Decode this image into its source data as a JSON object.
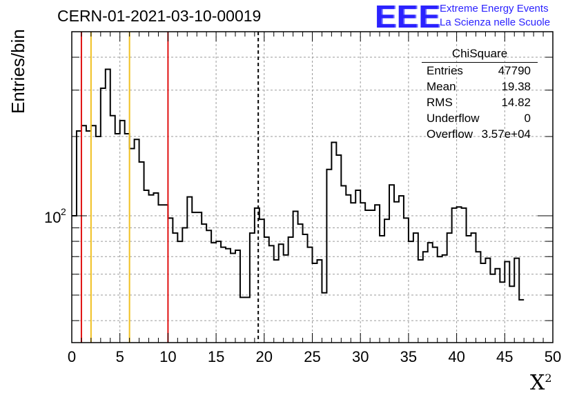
{
  "title": "CERN-01-2021-03-10-00019",
  "logo": {
    "mark": "EEE",
    "line1": "Extreme Energy Events",
    "line2": "La Scienza nelle Scuole",
    "color": "#2b22ff"
  },
  "chart_data": {
    "type": "histogram",
    "xlabel": "X",
    "xlabel_superscript": "2",
    "ylabel": "Entries/bin",
    "xlim": [
      0,
      50
    ],
    "ylim": [
      33,
      500
    ],
    "log_y": true,
    "grid": true,
    "x_ticks": [
      0,
      5,
      10,
      15,
      20,
      25,
      30,
      35,
      40,
      45,
      50
    ],
    "y_tick_labels": [
      {
        "value": 100,
        "label": "10",
        "superscript": "2"
      }
    ],
    "bin_width": 0.5,
    "bin_values": [
      100,
      210,
      220,
      210,
      220,
      200,
      305,
      360,
      240,
      205,
      230,
      205,
      180,
      195,
      160,
      125,
      120,
      122,
      110,
      110,
      98,
      86,
      80,
      90,
      118,
      103,
      103,
      93,
      88,
      79,
      80,
      76,
      75,
      72,
      74,
      49,
      49,
      86,
      107,
      97,
      83,
      77,
      68,
      78,
      71,
      83,
      104,
      93,
      85,
      76,
      66,
      68,
      51,
      150,
      190,
      170,
      130,
      120,
      112,
      125,
      112,
      105,
      105,
      110,
      84,
      97,
      131,
      113,
      119,
      98,
      80,
      86,
      68,
      73,
      79,
      76,
      70,
      71,
      86,
      107,
      108,
      107,
      84,
      86,
      73,
      66,
      69,
      60,
      63,
      56,
      67,
      54,
      69,
      48
    ],
    "vertical_lines": [
      {
        "x": 1,
        "color": "#e01010",
        "style": "solid"
      },
      {
        "x": 2,
        "color": "#f0c020",
        "style": "solid"
      },
      {
        "x": 6,
        "color": "#f0c020",
        "style": "solid"
      },
      {
        "x": 10,
        "color": "#e01010",
        "style": "solid"
      },
      {
        "x": 19.38,
        "color": "#000000",
        "style": "dashed"
      }
    ],
    "stats": {
      "title": "ChiSquare",
      "rows": [
        {
          "name": "Entries",
          "value": "47790"
        },
        {
          "name": "Mean",
          "value": "19.38"
        },
        {
          "name": "RMS",
          "value": "14.82"
        },
        {
          "name": "Underflow",
          "value": "0"
        },
        {
          "name": "Overflow",
          "value": "3.57e+04"
        }
      ]
    }
  }
}
